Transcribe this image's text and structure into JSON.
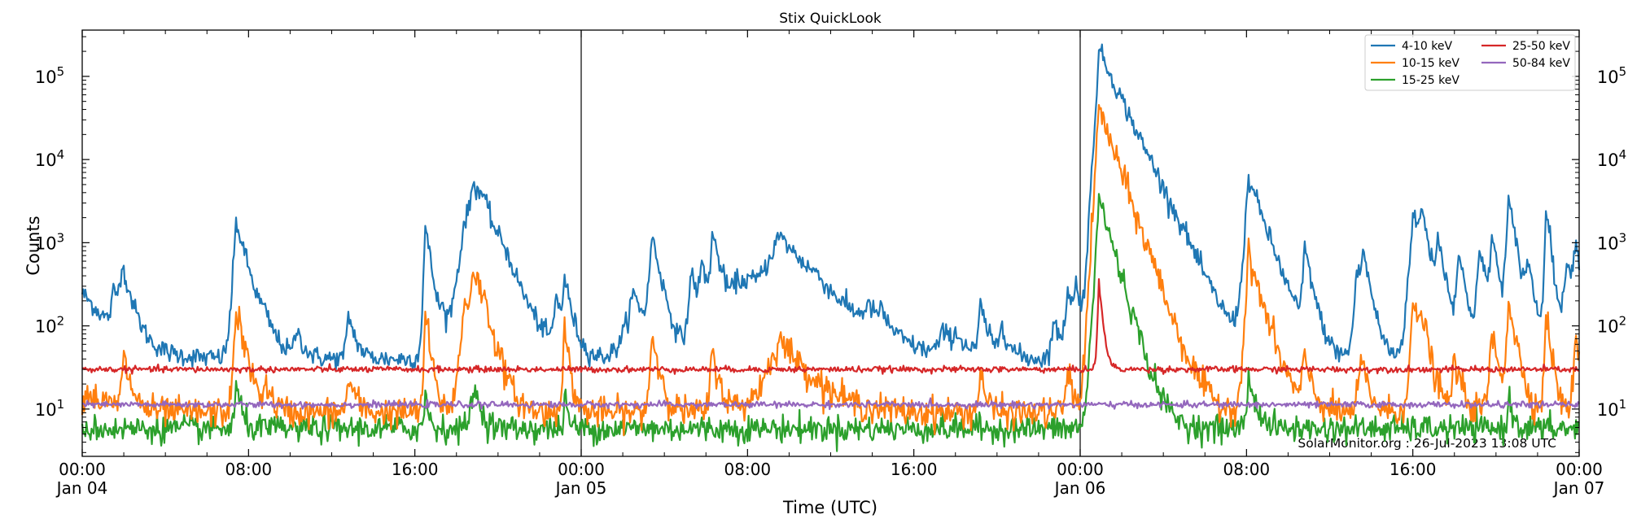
{
  "chart_data": {
    "type": "line",
    "title": "Stix QuickLook",
    "xlabel": "Time (UTC)",
    "ylabel": "Counts",
    "yscale": "log",
    "ylim": [
      2.7,
      360000
    ],
    "xlim_hours": [
      0,
      72
    ],
    "grid": false,
    "legend_position": "top-right",
    "watermark": "SolarMonitor.org : 26-Jul-2023 13:08 UTC",
    "x_ticks": [
      {
        "hour": 0,
        "line1": "00:00",
        "line2": "Jan 04"
      },
      {
        "hour": 8,
        "line1": "08:00",
        "line2": ""
      },
      {
        "hour": 16,
        "line1": "16:00",
        "line2": ""
      },
      {
        "hour": 24,
        "line1": "00:00",
        "line2": "Jan 05"
      },
      {
        "hour": 32,
        "line1": "08:00",
        "line2": ""
      },
      {
        "hour": 40,
        "line1": "16:00",
        "line2": ""
      },
      {
        "hour": 48,
        "line1": "00:00",
        "line2": "Jan 06"
      },
      {
        "hour": 56,
        "line1": "08:00",
        "line2": ""
      },
      {
        "hour": 64,
        "line1": "16:00",
        "line2": ""
      },
      {
        "hour": 72,
        "line1": "00:00",
        "line2": "Jan 07"
      }
    ],
    "day_boundaries_hours": [
      24,
      48
    ],
    "y_ticks": [
      {
        "value": 10,
        "base": "10",
        "exp": "1"
      },
      {
        "value": 100,
        "base": "10",
        "exp": "2"
      },
      {
        "value": 1000,
        "base": "10",
        "exp": "3"
      },
      {
        "value": 10000,
        "base": "10",
        "exp": "4"
      },
      {
        "value": 100000,
        "base": "10",
        "exp": "5"
      }
    ],
    "series": [
      {
        "name": "4-10 keV",
        "color": "#1f77b4",
        "baseline": 40,
        "noise": 0.06,
        "events": [
          [
            0.0,
            250,
            0.3,
            1.2
          ],
          [
            1.9,
            480,
            0.12,
            0.4
          ],
          [
            1.5,
            200,
            0.1,
            0.3
          ],
          [
            7.4,
            1800,
            0.1,
            0.45
          ],
          [
            8.7,
            80,
            0.2,
            0.5
          ],
          [
            10.3,
            90,
            0.1,
            0.3
          ],
          [
            12.8,
            140,
            0.08,
            0.3
          ],
          [
            16.5,
            1600,
            0.06,
            0.25
          ],
          [
            17.3,
            110,
            0.1,
            0.2
          ],
          [
            18.4,
            230,
            0.1,
            0.3
          ],
          [
            18.7,
            200,
            0.08,
            0.25
          ],
          [
            18.4,
            1500,
            0.25,
            0.9
          ],
          [
            18.8,
            4200,
            0.15,
            0.6
          ],
          [
            19.2,
            1400,
            0.2,
            0.5
          ],
          [
            20.2,
            300,
            0.2,
            0.6
          ],
          [
            22.8,
            220,
            0.1,
            0.2
          ],
          [
            23.2,
            350,
            0.1,
            0.3
          ],
          [
            26.5,
            250,
            0.3,
            0.6
          ],
          [
            27.4,
            1200,
            0.1,
            0.35
          ],
          [
            29.3,
            450,
            0.12,
            0.35
          ],
          [
            29.8,
            500,
            0.1,
            0.3
          ],
          [
            30.3,
            1200,
            0.08,
            0.4
          ],
          [
            31.5,
            250,
            0.3,
            0.6
          ],
          [
            32.0,
            180,
            0.3,
            0.8
          ],
          [
            33.5,
            1200,
            0.6,
            1.5
          ],
          [
            35.2,
            100,
            0.2,
            0.4
          ],
          [
            37.8,
            110,
            0.3,
            0.6
          ],
          [
            38.4,
            90,
            0.2,
            0.4
          ],
          [
            41.4,
            80,
            0.2,
            0.5
          ],
          [
            42.0,
            70,
            0.2,
            0.5
          ],
          [
            43.2,
            180,
            0.08,
            0.3
          ],
          [
            44.2,
            110,
            0.1,
            0.3
          ],
          [
            46.7,
            110,
            0.1,
            0.4
          ],
          [
            47.4,
            280,
            0.1,
            0.3
          ],
          [
            47.8,
            260,
            0.1,
            0.25
          ],
          [
            48.9,
            210000,
            0.1,
            0.8
          ],
          [
            48.5,
            350,
            0.06,
            0.15
          ],
          [
            51.4,
            1100,
            0.08,
            0.3
          ],
          [
            52.3,
            300,
            0.1,
            0.3
          ],
          [
            53.0,
            200,
            0.1,
            0.3
          ],
          [
            56.1,
            6000,
            0.12,
            0.6
          ],
          [
            58.8,
            850,
            0.08,
            0.3
          ],
          [
            61.3,
            450,
            0.1,
            0.3
          ],
          [
            61.6,
            700,
            0.1,
            0.3
          ],
          [
            64.0,
            2200,
            0.12,
            0.4
          ],
          [
            64.4,
            2000,
            0.1,
            0.3
          ],
          [
            65.2,
            1000,
            0.1,
            0.3
          ],
          [
            66.2,
            700,
            0.1,
            0.3
          ],
          [
            67.2,
            800,
            0.1,
            0.3
          ],
          [
            67.8,
            1100,
            0.1,
            0.3
          ],
          [
            68.6,
            3200,
            0.08,
            0.3
          ],
          [
            69.5,
            500,
            0.1,
            0.3
          ],
          [
            70.4,
            3000,
            0.05,
            0.2
          ],
          [
            71.4,
            700,
            0.1,
            0.3
          ],
          [
            71.8,
            900,
            0.08,
            0.3
          ]
        ]
      },
      {
        "name": "10-15 keV",
        "color": "#ff7f0e",
        "baseline": 9,
        "noise": 0.09,
        "events": [
          [
            0.2,
            16,
            0.3,
            1.0
          ],
          [
            2.0,
            40,
            0.1,
            0.3
          ],
          [
            7.4,
            160,
            0.08,
            0.35
          ],
          [
            8.8,
            18,
            0.1,
            0.3
          ],
          [
            12.8,
            24,
            0.08,
            0.3
          ],
          [
            16.5,
            150,
            0.05,
            0.2
          ],
          [
            18.4,
            200,
            0.15,
            0.5
          ],
          [
            18.8,
            450,
            0.1,
            0.4
          ],
          [
            19.3,
            80,
            0.2,
            0.4
          ],
          [
            23.2,
            90,
            0.08,
            0.2
          ],
          [
            27.4,
            80,
            0.08,
            0.3
          ],
          [
            30.3,
            50,
            0.08,
            0.3
          ],
          [
            33.5,
            70,
            0.5,
            1.2
          ],
          [
            43.2,
            30,
            0.08,
            0.2
          ],
          [
            47.4,
            30,
            0.1,
            0.2
          ],
          [
            48.9,
            42000,
            0.1,
            0.6
          ],
          [
            51.4,
            90,
            0.08,
            0.3
          ],
          [
            56.1,
            700,
            0.1,
            0.5
          ],
          [
            58.8,
            40,
            0.1,
            0.3
          ],
          [
            61.5,
            40,
            0.1,
            0.3
          ],
          [
            64.0,
            180,
            0.1,
            0.3
          ],
          [
            64.4,
            120,
            0.1,
            0.3
          ],
          [
            66.0,
            40,
            0.1,
            0.3
          ],
          [
            67.8,
            80,
            0.1,
            0.3
          ],
          [
            68.6,
            200,
            0.08,
            0.3
          ],
          [
            70.4,
            160,
            0.05,
            0.2
          ],
          [
            71.8,
            60,
            0.08,
            0.3
          ]
        ]
      },
      {
        "name": "15-25 keV",
        "color": "#2ca02c",
        "baseline": 5.8,
        "noise": 0.08,
        "events": [
          [
            7.4,
            20,
            0.06,
            0.2
          ],
          [
            16.5,
            16,
            0.05,
            0.15
          ],
          [
            18.8,
            20,
            0.1,
            0.3
          ],
          [
            23.2,
            14,
            0.05,
            0.15
          ],
          [
            48.9,
            3500,
            0.1,
            0.5
          ],
          [
            56.1,
            25,
            0.08,
            0.3
          ],
          [
            68.6,
            14,
            0.05,
            0.2
          ]
        ]
      },
      {
        "name": "25-50 keV",
        "color": "#d62728",
        "baseline": 30,
        "noise": 0.018,
        "events": [
          [
            48.9,
            340,
            0.05,
            0.15
          ]
        ]
      },
      {
        "name": "50-84 keV",
        "color": "#9467bd",
        "baseline": 11.3,
        "noise": 0.018,
        "events": []
      }
    ]
  }
}
